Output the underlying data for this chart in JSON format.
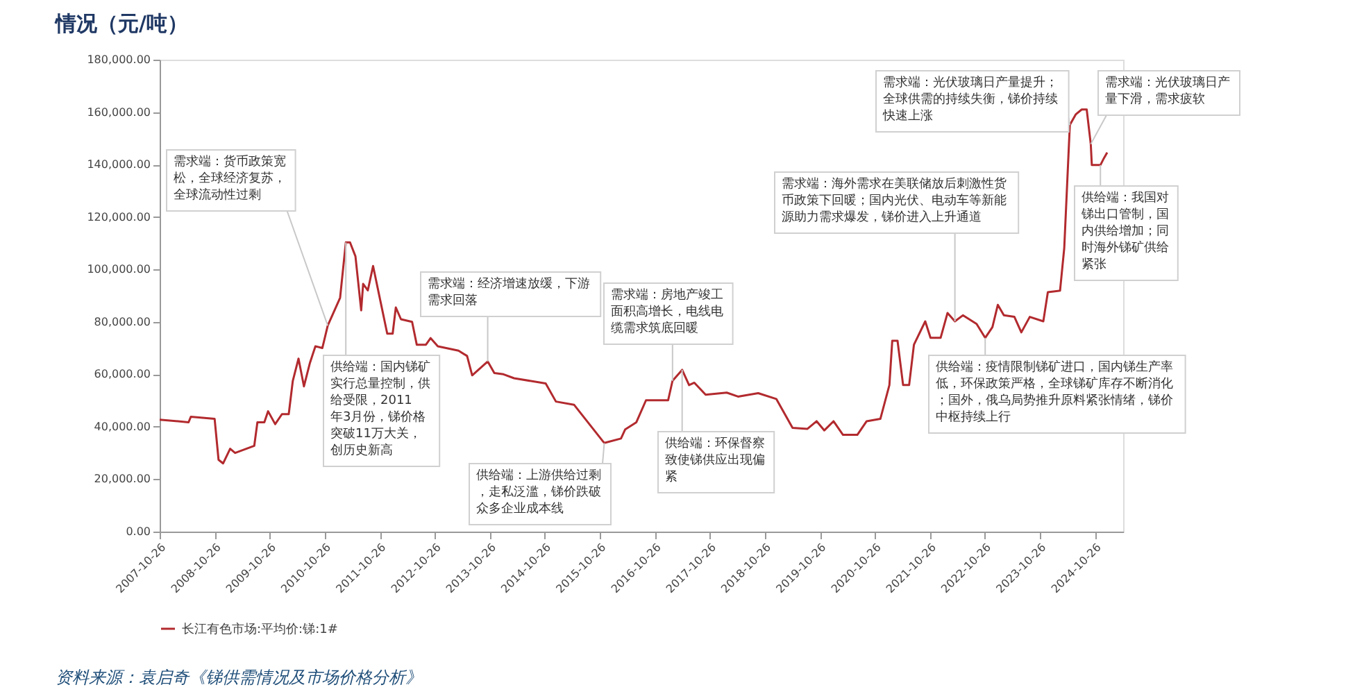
{
  "chart_data": {
    "type": "line",
    "title": "情况（元/吨）",
    "x": [
      "2007-10-26",
      "2008-05-05",
      "2008-05-20",
      "2008-10-25",
      "2008-11-20",
      "2008-12-20",
      "2009-02-05",
      "2009-03-10",
      "2009-07-15",
      "2009-08-05",
      "2009-09-20",
      "2009-10-15",
      "2009-12-01",
      "2010-01-15",
      "2010-03-01",
      "2010-03-28",
      "2010-05-05",
      "2010-06-10",
      "2010-07-20",
      "2010-08-25",
      "2010-10-10",
      "2010-11-15",
      "2011-02-05",
      "2011-03-15",
      "2011-04-12",
      "2011-05-18",
      "2011-06-25",
      "2011-07-08",
      "2011-08-08",
      "2011-09-12",
      "2011-10-30",
      "2011-12-15",
      "2012-01-20",
      "2012-02-10",
      "2012-03-15",
      "2012-05-28",
      "2012-06-28",
      "2012-08-28",
      "2012-09-28",
      "2012-11-15",
      "2013-04-01",
      "2013-05-28",
      "2013-07-01",
      "2013-10-12",
      "2013-11-25",
      "2014-01-25",
      "2014-04-05",
      "2014-11-01",
      "2015-01-08",
      "2015-05-08",
      "2015-11-25",
      "2016-03-15",
      "2016-04-12",
      "2016-06-25",
      "2016-08-28",
      "2017-01-22",
      "2017-02-20",
      "2017-04-25",
      "2017-06-10",
      "2017-07-15",
      "2017-09-28",
      "2018-02-15",
      "2018-05-01",
      "2018-09-12",
      "2019-01-10",
      "2019-04-28",
      "2019-08-05",
      "2019-10-05",
      "2019-11-25",
      "2020-01-25",
      "2020-03-28",
      "2020-07-01",
      "2020-09-01",
      "2020-12-01",
      "2021-01-30",
      "2021-02-18",
      "2021-03-25",
      "2021-05-01",
      "2021-06-10",
      "2021-07-12",
      "2021-09-25",
      "2021-10-30",
      "2022-01-05",
      "2022-02-20",
      "2022-04-10",
      "2022-06-02",
      "2022-09-01",
      "2022-10-28",
      "2022-12-15",
      "2023-01-20",
      "2023-03-01",
      "2023-05-10",
      "2023-06-25",
      "2023-08-20",
      "2023-11-18",
      "2023-12-18",
      "2024-03-08",
      "2024-04-05",
      "2024-05-12",
      "2024-06-20",
      "2024-07-30",
      "2024-09-01",
      "2024-09-28",
      "2024-10-05",
      "2024-12-01",
      "2024-12-25",
      "2025-01-15"
    ],
    "series": [
      {
        "name": "长江有色市场:平均价:锑:1#",
        "color": "#b22a2e",
        "values": [
          42700,
          41700,
          43800,
          43000,
          27400,
          26000,
          31600,
          30000,
          32700,
          41700,
          41700,
          45900,
          41000,
          44800,
          44800,
          57500,
          66000,
          55400,
          64400,
          70700,
          70000,
          78600,
          89200,
          110300,
          110300,
          105000,
          84400,
          94500,
          92000,
          101300,
          88100,
          75500,
          75500,
          85500,
          81000,
          80000,
          71300,
          71300,
          73800,
          70700,
          69000,
          67000,
          59600,
          64900,
          60500,
          60000,
          58500,
          56500,
          49600,
          48400,
          33800,
          35500,
          39000,
          41700,
          50100,
          50100,
          57500,
          61700,
          55900,
          56800,
          52200,
          53000,
          51500,
          52800,
          50600,
          39600,
          39200,
          42100,
          38600,
          42100,
          36900,
          36900,
          42100,
          43000,
          55900,
          72800,
          72800,
          55900,
          55900,
          71300,
          80200,
          73900,
          73900,
          83400,
          80200,
          82500,
          79200,
          73900,
          78000,
          86500,
          82500,
          81900,
          76000,
          81900,
          80200,
          91300,
          91900,
          108200,
          155100,
          159100,
          161000,
          161000,
          147800,
          139800,
          139800,
          142500,
          144600
        ]
      }
    ],
    "xlim": [
      "2007-10-26",
      "2025-05-01"
    ],
    "xticks": [
      "2007-10-26",
      "2008-10-26",
      "2009-10-26",
      "2010-10-26",
      "2011-10-26",
      "2012-10-26",
      "2013-10-26",
      "2014-10-26",
      "2015-10-26",
      "2016-10-26",
      "2017-10-26",
      "2018-10-26",
      "2019-10-26",
      "2020-10-26",
      "2021-10-26",
      "2022-10-26",
      "2023-10-26",
      "2024-10-26"
    ],
    "ylim": [
      0,
      180000
    ],
    "yticks": [
      {
        "value": 0,
        "label": "0.00"
      },
      {
        "value": 20000,
        "label": "20,000.00"
      },
      {
        "value": 40000,
        "label": "40,000.00"
      },
      {
        "value": 60000,
        "label": "60,000.00"
      },
      {
        "value": 80000,
        "label": "80,000.00"
      },
      {
        "value": 100000,
        "label": "100,000.00"
      },
      {
        "value": 120000,
        "label": "120,000.00"
      },
      {
        "value": 140000,
        "label": "140,000.00"
      },
      {
        "value": 160000,
        "label": "160,000.00"
      },
      {
        "value": 180000,
        "label": "180,000.00"
      }
    ],
    "grid": false,
    "legend": "bottom",
    "annotations": [
      {
        "text": "需求端：货币政策宽松，全球经济复苏，全球流动性过剩",
        "x": "2010-11-15",
        "y": 78600
      },
      {
        "text": "供给端：国内锑矿实行总量控制，供给受限，2011年3月份，锑价格突破11万大关，创历史新高",
        "x": "2011-03-15",
        "y": 110300
      },
      {
        "text": "需求端：经济增速放缓，下游需求回落",
        "x": "2013-10-12",
        "y": 64900
      },
      {
        "text": "供给端：上游供给过剩，走私泛滥，锑价跌破众多企业成本线",
        "x": "2015-11-25",
        "y": 33800
      },
      {
        "text": "需求端：房地产竣工面积高增长，电线电缆需求筑底回暖",
        "x": "2017-02-20",
        "y": 57500
      },
      {
        "text": "供给端：环保督察致使锑供应出现偏紧",
        "x": "2017-04-25",
        "y": 61700
      },
      {
        "text": "需求端：海外需求在美联储放后刺激性货币政策下回暖；国内光伏、电动车等新能源助力需求爆发，锑价进入上升通道",
        "x": "2022-04-10",
        "y": 80200
      },
      {
        "text": "供给端：疫情限制锑矿进口，国内锑生产率低，环保政策严格，全球锑矿库存不断消化；国外，俄乌局势推升原料紧张情绪，锑价中枢持续上行",
        "x": "2022-10-28",
        "y": 73900
      },
      {
        "text": "需求端：光伏玻璃日产量提升；全球供需的持续失衡，锑价持续快速上涨",
        "x": "2024-05-12",
        "y": 155100
      },
      {
        "text": "需求端：光伏玻璃日产量下滑，需求疲软",
        "x": "2024-09-28",
        "y": 147800
      },
      {
        "text": "供给端：我国对锑出口管制，国内供给增加；同时海外锑矿供给紧张",
        "x": "2024-12-01",
        "y": 139800
      },
      "资料来源：袁启奇《锑供需情况及市场价格分析》"
    ]
  }
}
